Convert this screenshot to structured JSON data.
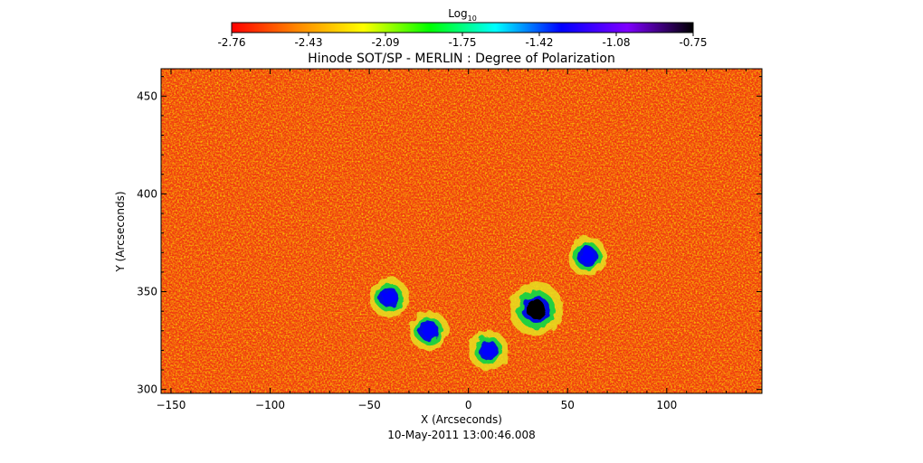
{
  "chart_data": {
    "type": "heatmap",
    "title": "Hinode SOT/SP - MERLIN : Degree of Polarization",
    "subtitle": "10-May-2011 13:00:46.008",
    "xlabel": "X (Arcseconds)",
    "ylabel": "Y (Arcseconds)",
    "xlim": [
      -155,
      148
    ],
    "ylim": [
      298,
      464
    ],
    "x_ticks": [
      -150,
      -100,
      -50,
      0,
      50,
      100
    ],
    "y_ticks": [
      300,
      350,
      400,
      450
    ],
    "colorbar": {
      "label_base": "Log",
      "label_sub": "10",
      "range": [
        -2.76,
        -0.75
      ],
      "ticks": [
        "-2.76",
        "-2.43",
        "-2.09",
        "-1.75",
        "-1.42",
        "-1.08",
        "-0.75"
      ],
      "colormap": "rainbow",
      "colors": [
        "#ff0000",
        "#ff8800",
        "#ffff00",
        "#00ff00",
        "#00ffff",
        "#0000ff",
        "#7f00ff",
        "#000000"
      ]
    },
    "features": [
      {
        "x": 34,
        "y": 341,
        "value": -0.85
      },
      {
        "x": -40,
        "y": 347,
        "value": -1.2
      },
      {
        "x": -20,
        "y": 330,
        "value": -1.3
      },
      {
        "x": 10,
        "y": 320,
        "value": -1.35
      },
      {
        "x": 60,
        "y": 368,
        "value": -1.4
      }
    ]
  }
}
